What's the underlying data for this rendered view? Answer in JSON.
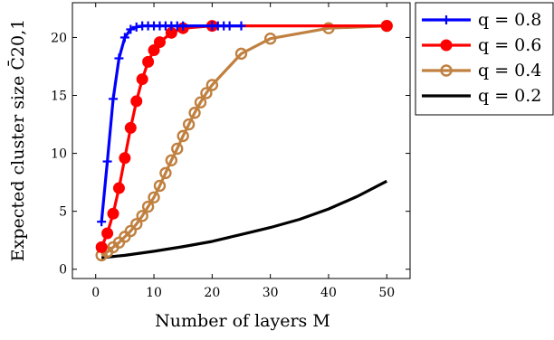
{
  "chart_data": {
    "type": "line",
    "xlabel": "Number of layers M",
    "ylabel": "Expected cluster size C̄20,1",
    "xlim": [
      -4,
      54
    ],
    "ylim": [
      -0.8,
      23
    ],
    "x_ticks": [
      0,
      10,
      20,
      30,
      40,
      50
    ],
    "y_ticks": [
      0,
      5,
      10,
      15,
      20
    ],
    "grid": false,
    "legend_position": "outside-right-top",
    "series": [
      {
        "name": "q = 0.8",
        "color": "#0000ff",
        "marker": "plus",
        "x": [
          1,
          2,
          3,
          4,
          5,
          6,
          7,
          8,
          9,
          10,
          11,
          12,
          13,
          14,
          15,
          20,
          21,
          22,
          23,
          25
        ],
        "y": [
          4.1,
          9.3,
          14.7,
          18.2,
          20.0,
          20.7,
          20.9,
          21.0,
          21.0,
          21.0,
          21.0,
          21.0,
          21.0,
          21.0,
          21.0,
          21.0,
          21.0,
          21.0,
          21.0,
          21.0
        ]
      },
      {
        "name": "q = 0.6",
        "color": "#ff0000",
        "marker": "circle",
        "x": [
          1,
          2,
          3,
          4,
          5,
          6,
          7,
          8,
          9,
          10,
          11,
          13,
          15,
          20,
          50
        ],
        "y": [
          1.9,
          3.1,
          4.8,
          7.0,
          9.6,
          12.2,
          14.5,
          16.4,
          17.9,
          18.9,
          19.6,
          20.4,
          20.8,
          21.0,
          21.0
        ]
      },
      {
        "name": "q = 0.4",
        "color": "#c08040",
        "marker": "circle-open",
        "x": [
          1,
          2,
          3,
          4,
          5,
          6,
          7,
          8,
          9,
          10,
          11,
          12,
          13,
          14,
          15,
          16,
          17,
          18,
          19,
          20,
          25,
          30,
          40,
          50
        ],
        "y": [
          1.2,
          1.5,
          1.9,
          2.3,
          2.8,
          3.3,
          3.9,
          4.6,
          5.4,
          6.2,
          7.2,
          8.3,
          9.4,
          10.4,
          11.5,
          12.5,
          13.5,
          14.4,
          15.2,
          15.9,
          18.6,
          19.9,
          20.8,
          21.0
        ]
      },
      {
        "name": "q = 0.2",
        "color": "#000000",
        "marker": "none",
        "x": [
          1,
          5,
          10,
          15,
          20,
          25,
          30,
          35,
          40,
          45,
          50
        ],
        "y": [
          1.0,
          1.2,
          1.55,
          1.95,
          2.4,
          3.0,
          3.6,
          4.3,
          5.2,
          6.3,
          7.6
        ]
      }
    ]
  }
}
